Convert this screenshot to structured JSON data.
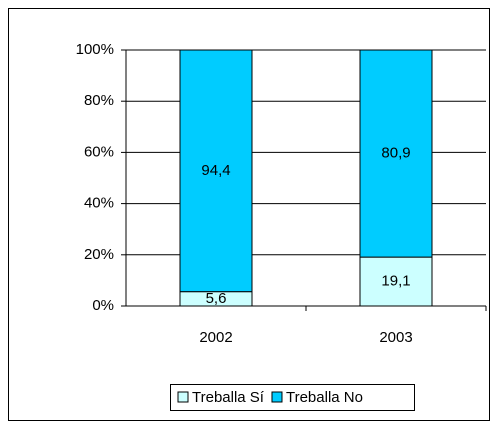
{
  "chart_data": {
    "type": "stacked_bar",
    "categories": [
      "2002",
      "2003"
    ],
    "series": [
      {
        "name": "Treballa Sí",
        "color": "#ccffff",
        "values": [
          5.6,
          19.1
        ],
        "value_labels": [
          "5,6",
          "19,1"
        ]
      },
      {
        "name": "Treballa No",
        "color": "#00ccff",
        "values": [
          94.4,
          80.9
        ],
        "value_labels": [
          "94,4",
          "80,9"
        ]
      }
    ],
    "ylim": [
      0,
      100
    ],
    "yticks": [
      {
        "value": 0,
        "label": "0%"
      },
      {
        "value": 20,
        "label": "20%"
      },
      {
        "value": 40,
        "label": "40%"
      },
      {
        "value": 60,
        "label": "60%"
      },
      {
        "value": 80,
        "label": "80%"
      },
      {
        "value": 100,
        "label": "100%"
      }
    ],
    "grid": true,
    "legend": "bottom"
  }
}
